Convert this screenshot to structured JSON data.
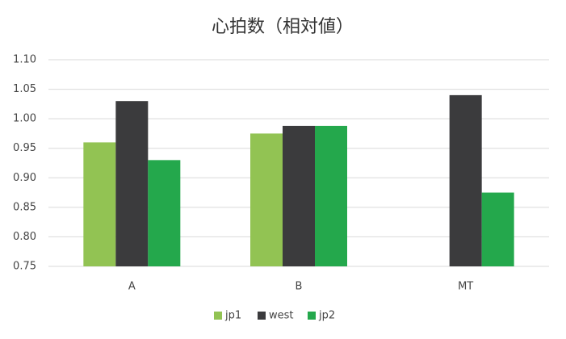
{
  "chart_data": {
    "type": "bar",
    "title": "心拍数（相対値）",
    "categories": [
      "A",
      "B",
      "MT"
    ],
    "series": [
      {
        "name": "jp1",
        "color": "#92c353",
        "values": [
          0.96,
          0.975,
          null
        ]
      },
      {
        "name": "west",
        "color": "#3b3b3d",
        "values": [
          1.03,
          0.988,
          1.04
        ]
      },
      {
        "name": "jp2",
        "color": "#24a84c",
        "values": [
          0.93,
          0.988,
          0.875
        ]
      }
    ],
    "ylim": [
      0.75,
      1.1
    ],
    "yticks": [
      0.75,
      {
        "value": 0.8,
        "label": "0.80"
      },
      0.85,
      {
        "value": 0.9,
        "label": "0.90"
      },
      0.95,
      {
        "value": 1.0,
        "label": "1.00"
      },
      1.05,
      {
        "value": 1.1,
        "label": "1.10"
      }
    ],
    "grid": true,
    "legend": "bottom"
  }
}
